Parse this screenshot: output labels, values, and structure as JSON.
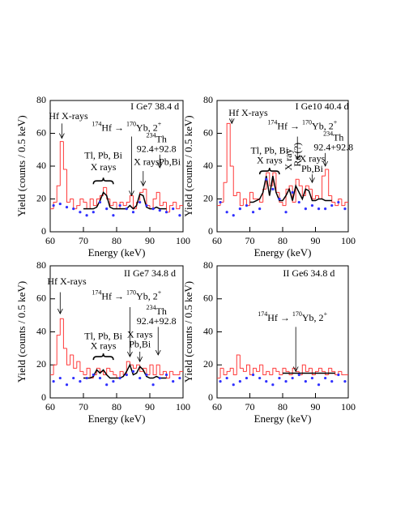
{
  "chart_data": [
    {
      "type": "histogram",
      "label": "I Ge7 38.4 d",
      "xlabel": "Energy (keV)",
      "ylabel": "Yield (counts / 0.5 keV)",
      "xlim": [
        60,
        100
      ],
      "ylim": [
        0,
        80
      ],
      "xticks": [
        60,
        70,
        80,
        90,
        100
      ],
      "yticks": [
        0,
        20,
        40,
        60,
        80
      ],
      "hist_color": "#ff3a3a",
      "dot_color": "#3030ff",
      "fit_color": "#000000",
      "bins": [
        60,
        61,
        62,
        63,
        64,
        65,
        66,
        67,
        68,
        69,
        70,
        71,
        72,
        73,
        74,
        75,
        76,
        77,
        78,
        79,
        80,
        81,
        82,
        83,
        84,
        85,
        86,
        87,
        88,
        89,
        90,
        91,
        92,
        93,
        94,
        95,
        96,
        97,
        98,
        99,
        100
      ],
      "counts": [
        14,
        18,
        28,
        55,
        38,
        18,
        20,
        14,
        16,
        20,
        18,
        14,
        20,
        16,
        20,
        22,
        27,
        20,
        16,
        18,
        14,
        18,
        16,
        18,
        22,
        14,
        18,
        24,
        26,
        16,
        14,
        20,
        24,
        16,
        18,
        12,
        16,
        18,
        14,
        16
      ],
      "dots": {
        "x": [
          61,
          63,
          65,
          67,
          69,
          71,
          73,
          75,
          77,
          79,
          81,
          83,
          85,
          87,
          89,
          91,
          93,
          95,
          97,
          99
        ],
        "y": [
          16,
          17,
          15,
          14,
          12,
          10,
          12,
          18,
          14,
          10,
          16,
          14,
          12,
          18,
          16,
          14,
          13,
          12,
          14,
          10
        ]
      },
      "fit": {
        "x": [
          70,
          71,
          72,
          73,
          74,
          75,
          76,
          77,
          78,
          79,
          80,
          81,
          82,
          83,
          84,
          85,
          86,
          87,
          88,
          89,
          90,
          91,
          92,
          93,
          94,
          95
        ],
        "y": [
          14,
          14,
          14,
          14,
          15,
          19,
          24,
          22,
          15,
          14,
          14,
          14,
          14,
          14,
          16,
          14,
          16,
          23,
          22,
          15,
          14,
          14,
          15,
          14,
          14,
          14
        ]
      },
      "annotations": [
        "I Ge7 38.4 d",
        "Hf X-rays",
        [
          "174",
          "Hf → ",
          "170",
          "Yb, 2",
          "+"
        ],
        "Tl, Pb, Bi",
        "X rays",
        [
          "234",
          "Th"
        ],
        "92.4+92.8",
        "X rays",
        "Pb,Bi"
      ]
    },
    {
      "type": "histogram",
      "label": "I Ge10 40.4 d",
      "xlabel": "Energy (keV)",
      "ylabel": "Yield (counts / 0.5 keV)",
      "xlim": [
        60,
        100
      ],
      "ylim": [
        0,
        80
      ],
      "xticks": [
        60,
        70,
        80,
        90,
        100
      ],
      "yticks": [
        0,
        20,
        40,
        60,
        80
      ],
      "hist_color": "#ff3a3a",
      "dot_color": "#3030ff",
      "fit_color": "#000000",
      "bins": [
        60,
        61,
        62,
        63,
        64,
        65,
        66,
        67,
        68,
        69,
        70,
        71,
        72,
        73,
        74,
        75,
        76,
        77,
        78,
        79,
        80,
        81,
        82,
        83,
        84,
        85,
        86,
        87,
        88,
        89,
        90,
        91,
        92,
        93,
        94,
        95,
        96,
        97,
        98,
        99,
        100
      ],
      "counts": [
        16,
        18,
        30,
        66,
        40,
        22,
        24,
        16,
        20,
        16,
        24,
        20,
        20,
        18,
        26,
        36,
        28,
        36,
        24,
        18,
        16,
        26,
        28,
        18,
        32,
        28,
        22,
        28,
        26,
        20,
        22,
        20,
        34,
        38,
        22,
        18,
        16,
        20,
        16,
        18
      ],
      "dots": {
        "x": [
          61,
          63,
          65,
          67,
          69,
          71,
          73,
          75,
          77,
          79,
          81,
          83,
          85,
          87,
          89,
          91,
          93,
          95,
          97,
          99
        ],
        "y": [
          18,
          12,
          10,
          14,
          16,
          12,
          14,
          32,
          26,
          20,
          12,
          24,
          18,
          14,
          16,
          14,
          14,
          16,
          18,
          14
        ]
      },
      "fit": {
        "x": [
          70,
          71,
          72,
          73,
          74,
          75,
          76,
          77,
          78,
          79,
          80,
          81,
          82,
          83,
          84,
          85,
          86,
          87,
          88,
          89,
          90,
          91,
          92,
          93,
          94,
          95
        ],
        "y": [
          18,
          18,
          19,
          20,
          24,
          34,
          22,
          34,
          24,
          19,
          19,
          22,
          26,
          19,
          28,
          24,
          20,
          26,
          25,
          19,
          19,
          20,
          20,
          19,
          19,
          19
        ]
      },
      "annotations": [
        "I Ge10 40.4 d",
        "Hf X-rays",
        [
          "174",
          "Hf → ",
          "170",
          "Yb, 2",
          "+"
        ],
        "Tl, Pb, Bi",
        "X rays",
        "X ray",
        "Ra (?)",
        [
          "234",
          "Th"
        ],
        "92.4+92.8",
        "X rays",
        "Pb,Bi"
      ]
    },
    {
      "type": "histogram",
      "label": "II Ge7 34.8 d",
      "xlabel": "Energy (keV)",
      "ylabel": "Yield (counts / 0.5 keV)",
      "xlim": [
        60,
        100
      ],
      "ylim": [
        0,
        80
      ],
      "xticks": [
        60,
        70,
        80,
        90,
        100
      ],
      "yticks": [
        0,
        20,
        40,
        60,
        80
      ],
      "hist_color": "#ff3a3a",
      "dot_color": "#3030ff",
      "fit_color": "#000000",
      "bins": [
        60,
        61,
        62,
        63,
        64,
        65,
        66,
        67,
        68,
        69,
        70,
        71,
        72,
        73,
        74,
        75,
        76,
        77,
        78,
        79,
        80,
        81,
        82,
        83,
        84,
        85,
        86,
        87,
        88,
        89,
        90,
        91,
        92,
        93,
        94,
        95,
        96,
        97,
        98,
        99,
        100
      ],
      "counts": [
        14,
        20,
        38,
        48,
        30,
        20,
        26,
        18,
        22,
        16,
        14,
        18,
        12,
        14,
        18,
        16,
        14,
        18,
        16,
        14,
        12,
        16,
        14,
        22,
        20,
        18,
        20,
        16,
        18,
        14,
        20,
        14,
        20,
        14,
        16,
        12,
        16,
        14,
        14,
        16
      ],
      "dots": {
        "x": [
          61,
          63,
          65,
          67,
          69,
          71,
          73,
          75,
          77,
          79,
          81,
          83,
          85,
          87,
          89,
          91,
          93,
          95,
          97,
          99
        ],
        "y": [
          10,
          12,
          8,
          12,
          10,
          12,
          14,
          12,
          8,
          10,
          12,
          14,
          16,
          12,
          14,
          8,
          12,
          14,
          10,
          12
        ]
      },
      "fit": {
        "x": [
          70,
          71,
          72,
          73,
          74,
          75,
          76,
          77,
          78,
          79,
          80,
          81,
          82,
          83,
          84,
          85,
          86,
          87,
          88,
          89,
          90,
          91,
          92,
          93,
          94,
          95
        ],
        "y": [
          12,
          12,
          12,
          13,
          17,
          15,
          17,
          14,
          12,
          12,
          12,
          12,
          13,
          16,
          20,
          14,
          15,
          19,
          17,
          13,
          12,
          12,
          13,
          12,
          12,
          12
        ]
      },
      "annotations": [
        "II Ge7 34.8 d",
        "Hf X-rays",
        [
          "174",
          "Hf → ",
          "170",
          "Yb, 2",
          "+"
        ],
        "Tl, Pb, Bi",
        "X rays",
        [
          "234",
          "Th"
        ],
        "92.4+92.8",
        "X rays",
        "Pb,Bi"
      ]
    },
    {
      "type": "histogram",
      "label": "II Ge6 34.8 d",
      "xlabel": "Energy (keV)",
      "ylabel": "Yield (counts / 0.5 keV)",
      "xlim": [
        60,
        100
      ],
      "ylim": [
        0,
        80
      ],
      "xticks": [
        60,
        70,
        80,
        90,
        100
      ],
      "yticks": [
        0,
        20,
        40,
        60,
        80
      ],
      "hist_color": "#ff3a3a",
      "dot_color": "#3030ff",
      "fit_color": "#000000",
      "bins": [
        60,
        61,
        62,
        63,
        64,
        65,
        66,
        67,
        68,
        69,
        70,
        71,
        72,
        73,
        74,
        75,
        76,
        77,
        78,
        79,
        80,
        81,
        82,
        83,
        84,
        85,
        86,
        87,
        88,
        89,
        90,
        91,
        92,
        93,
        94,
        95,
        96,
        97,
        98,
        99,
        100
      ],
      "counts": [
        12,
        18,
        14,
        16,
        18,
        14,
        26,
        18,
        16,
        20,
        14,
        18,
        16,
        20,
        14,
        16,
        14,
        18,
        16,
        14,
        18,
        16,
        14,
        18,
        16,
        14,
        20,
        16,
        18,
        14,
        16,
        18,
        16,
        14,
        18,
        16,
        14,
        16,
        14,
        14
      ],
      "dots": {
        "x": [
          61,
          63,
          65,
          67,
          69,
          71,
          73,
          75,
          77,
          79,
          81,
          83,
          85,
          87,
          89,
          91,
          93,
          95,
          97,
          99
        ],
        "y": [
          10,
          12,
          8,
          10,
          12,
          14,
          12,
          10,
          8,
          12,
          10,
          12,
          14,
          10,
          12,
          8,
          12,
          10,
          14,
          10
        ]
      },
      "fit": {
        "x": [
          80,
          82,
          84,
          86,
          88,
          90,
          92,
          94,
          96
        ],
        "y": [
          15,
          15,
          15,
          15,
          15,
          15,
          15,
          15,
          15
        ]
      },
      "annotations": [
        "II Ge6 34.8 d",
        [
          "174",
          "Hf → ",
          "170",
          "Yb, 2",
          "+"
        ]
      ]
    }
  ]
}
